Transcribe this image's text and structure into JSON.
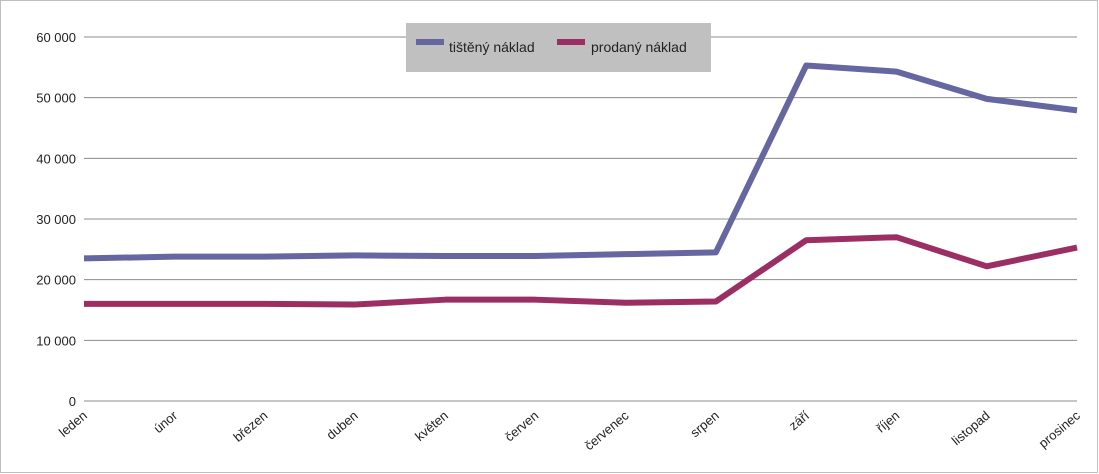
{
  "chart_data": {
    "type": "line",
    "title": "",
    "xlabel": "",
    "ylabel": "",
    "categories": [
      "leden",
      "únor",
      "březen",
      "duben",
      "květen",
      "červen",
      "červenec",
      "srpen",
      "září",
      "říjen",
      "listopad",
      "prosinec"
    ],
    "ylim": [
      0,
      60000
    ],
    "yticks": [
      0,
      10000,
      20000,
      30000,
      40000,
      50000,
      60000
    ],
    "ytick_labels": [
      "0",
      "10 000",
      "20 000",
      "30 000",
      "40 000",
      "50 000",
      "60 000"
    ],
    "grid": true,
    "legend_position": "top-center",
    "series": [
      {
        "name": "tištěný náklad",
        "color": "#6666a0",
        "values": [
          23500,
          23800,
          23800,
          24000,
          23900,
          23900,
          24200,
          24500,
          55300,
          54300,
          49800,
          47900
        ]
      },
      {
        "name": "prodaný náklad",
        "color": "#9b2f64",
        "values": [
          16000,
          16000,
          16000,
          15900,
          16700,
          16700,
          16200,
          16400,
          26500,
          27000,
          22200,
          25300
        ]
      }
    ]
  }
}
